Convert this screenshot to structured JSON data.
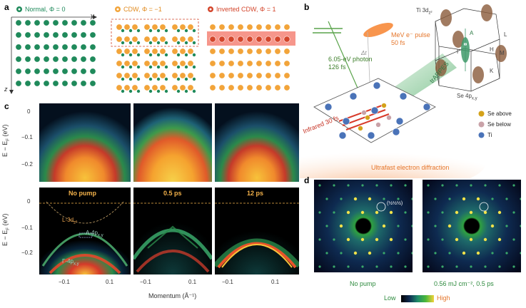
{
  "panel_a": {
    "label": "a",
    "legend": {
      "normal": "Normal, Φ = 0",
      "cdw": "CDW, Φ = −1",
      "inverted": "Inverted CDW, Φ = 1"
    },
    "axes": {
      "y": "y",
      "z": "z"
    },
    "colors": {
      "green": "#1f8a5b",
      "orange": "#f2a43a",
      "red": "#d3452b"
    }
  },
  "panel_b": {
    "label": "b",
    "photon": "6.05-eV photon",
    "photon_dur": "126 fs",
    "pulse": "MeV e⁻ pulse",
    "pulse_dur": "50 fs",
    "delta_t": "Δt",
    "infrared": "Infrared 30 fs",
    "trarpes": "trARPES",
    "ued": "Ultrafast electron diffraction",
    "bz": {
      "ti3d": "Ti 3d",
      "ti3d_sub": "z²",
      "se4p": "Se 4p",
      "se4p_sub": "x,y",
      "A": "A",
      "Gamma": "Γ",
      "H": "H",
      "M": "M",
      "K": "K",
      "L": "L"
    },
    "legend": {
      "se_above": "Se above",
      "se_below": "Se below",
      "ti": "Ti"
    }
  },
  "panel_c": {
    "label": "c",
    "ylabel": "E − E",
    "ylabel_sub": "F",
    "ylabel_unit": "(eV)",
    "y_ticks_top": [
      "0",
      "−0.1",
      "−0.2"
    ],
    "y_ticks_bottom": [
      "0",
      "−0.1",
      "−0.2"
    ],
    "x_ticks": [
      "−0.1",
      "0.1"
    ],
    "xlabel": "Momentum  (Å⁻¹)",
    "tags": [
      "No pump",
      "0.5 ps",
      "12 ps"
    ],
    "annotations": {
      "l3d": "L-3d",
      "l3d_sub": "z²",
      "a4p": "A-4p",
      "a4p_sub": "x,y",
      "g4p": "Γ-4p",
      "g4p_sub": "x,y"
    }
  },
  "panel_d": {
    "label": "d",
    "left_caption": "No pump",
    "right_caption": "0.56 mJ cm⁻², 0.5 ps",
    "index": "(½½½)",
    "colorbar": {
      "low": "Low",
      "high": "High"
    }
  }
}
